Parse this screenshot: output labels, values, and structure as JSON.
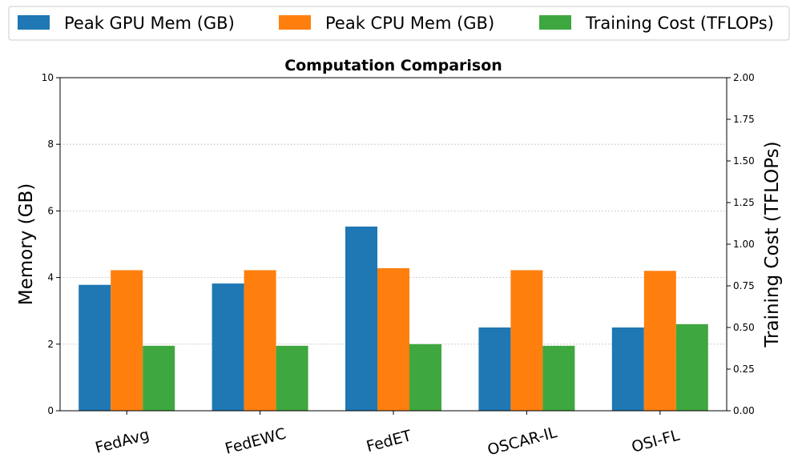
{
  "chart_data": {
    "type": "bar",
    "title": "Computation Comparison",
    "categories": [
      "FedAvg",
      "FedEWC",
      "FedET",
      "OSCAR-IL",
      "OSI-FL"
    ],
    "series": [
      {
        "name": "Peak GPU Mem (GB)",
        "axis": "left",
        "color": "#1f77b4",
        "values": [
          3.78,
          3.82,
          5.53,
          2.5,
          2.5
        ]
      },
      {
        "name": "Peak CPU Mem (GB)",
        "axis": "left",
        "color": "#ff7f0e",
        "values": [
          4.22,
          4.22,
          4.28,
          4.22,
          4.2
        ]
      },
      {
        "name": "Training Cost (TFLOPs)",
        "axis": "right",
        "color": "#3fa73f",
        "values": [
          0.39,
          0.39,
          0.4,
          0.39,
          0.52
        ]
      }
    ],
    "ylabel": "Memory (GB)",
    "ylabel_right": "Training Cost (TFLOPs)",
    "ylim": [
      0,
      10
    ],
    "ylim_right": [
      0,
      2.0
    ],
    "yticks": [
      "0",
      "2",
      "4",
      "6",
      "8",
      "10"
    ],
    "yticks_right": [
      "0.00",
      "0.25",
      "0.50",
      "0.75",
      "1.00",
      "1.25",
      "1.50",
      "1.75",
      "2.00"
    ],
    "grid": "horizontal dotted",
    "legend_position": "top"
  }
}
